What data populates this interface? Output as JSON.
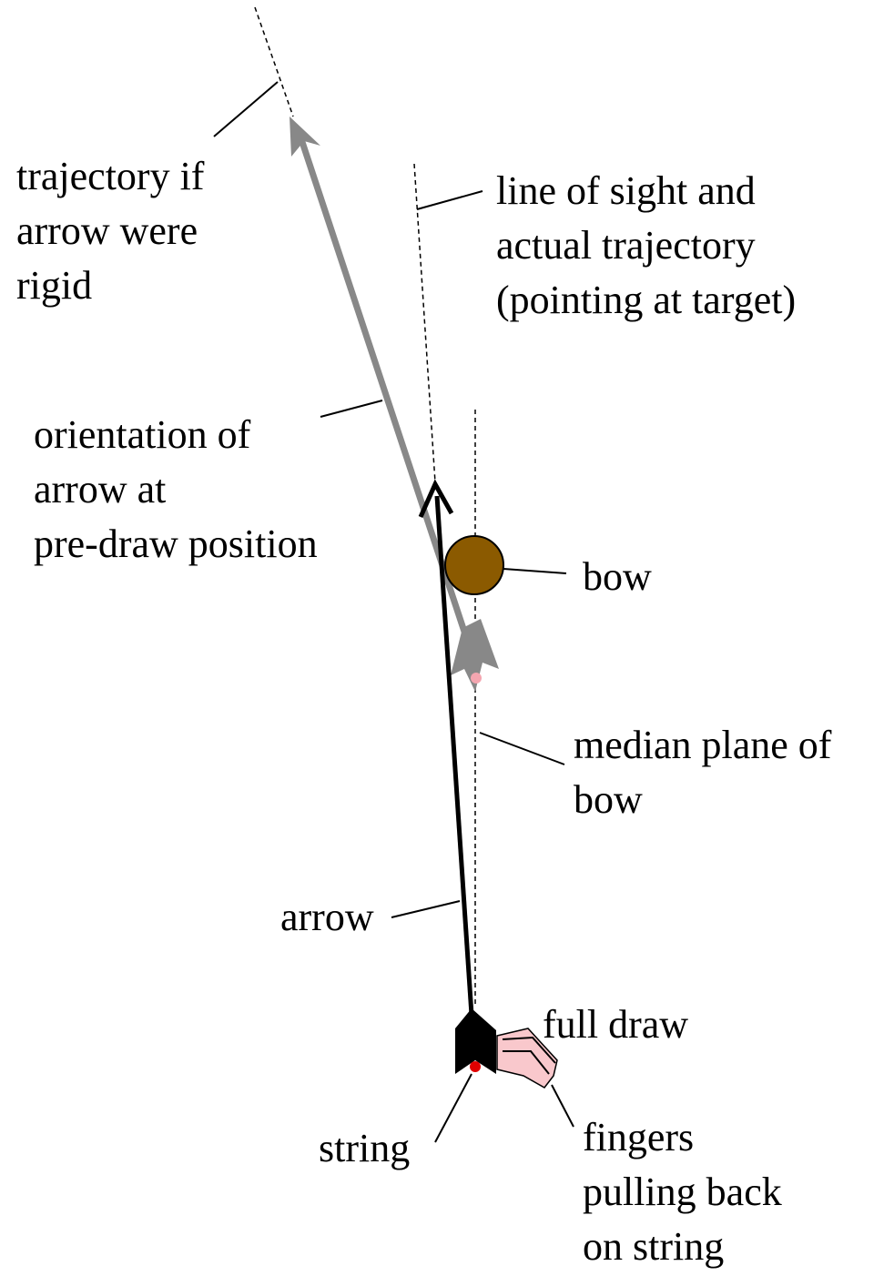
{
  "labels": {
    "rigid_trajectory": [
      "trajectory if",
      "arrow were",
      "rigid"
    ],
    "line_of_sight": [
      "line of sight and",
      "actual trajectory",
      "(pointing at target)"
    ],
    "orientation": [
      "orientation of",
      "arrow at",
      "pre-draw position"
    ],
    "bow": [
      "bow"
    ],
    "median_plane": [
      "median plane of",
      "bow"
    ],
    "arrow": [
      "arrow"
    ],
    "full_draw": [
      "full draw"
    ],
    "string": [
      "string"
    ],
    "fingers": [
      "fingers",
      "pulling back",
      "on string"
    ]
  }
}
